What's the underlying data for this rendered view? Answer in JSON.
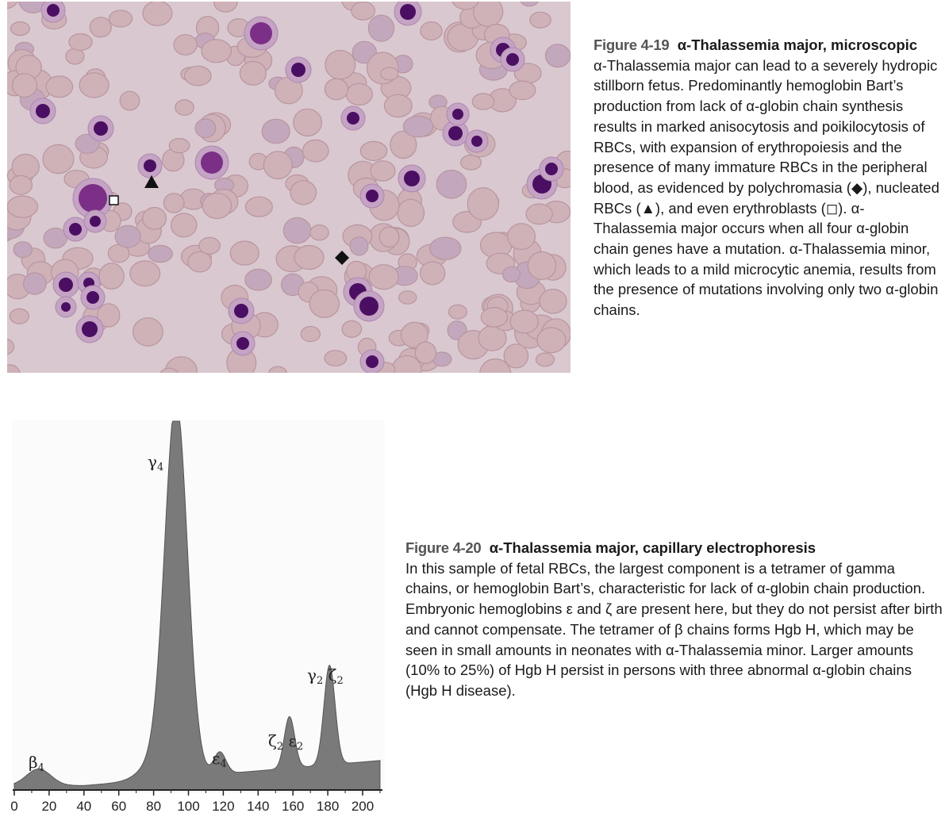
{
  "figure_19": {
    "number": "Figure 4-19",
    "title": "α-Thalassemia major, microscopic",
    "body": "α-Thalassemia major can lead to a severely hydropic stillborn fetus. Predominantly hemoglobin Bart’s production from lack of α-globin chain synthesis results in marked anisocytosis and poikilocytosis of RBCs, with expansion of erythropoiesis and the presence of many immature RBCs in the peripheral blood, as evidenced by polychromasia (◆), nucleated RBCs (▲), and even erythroblasts (◻). α-Thalassemia major occurs when all four α-globin chain genes have a mutation. α-Thalassemia minor, which leads to a mild microcytic anemia, results from the presence of mutations involving only two α-globin chains.",
    "markers": {
      "diamond": "◆",
      "triangle": "▲",
      "square": "◻"
    }
  },
  "figure_20": {
    "number": "Figure 4-20",
    "title": "α-Thalassemia major, capillary electrophoresis",
    "body": "In this sample of fetal RBCs, the largest component is a tetramer of gamma chains, or hemoglobin Bart’s, characteristic for lack of α-globin chain production. Embryonic hemoglobins ε and ζ are present here, but they do not persist after birth and cannot compensate. The tetramer of β chains forms Hgb H, which may be seen in small amounts in neonates with α-Thalassemia minor. Larger amounts (10% to 25%) of Hgb H persist in persons with three abnormal α-globin chains (Hgb H disease)."
  },
  "chart_data": {
    "type": "area",
    "title": "",
    "xlabel": "",
    "ylabel": "",
    "xlim": [
      0,
      210
    ],
    "ticks": [
      "0",
      "20",
      "40",
      "60",
      "80",
      "100",
      "120",
      "140",
      "160",
      "180",
      "200"
    ],
    "grid": false,
    "fill_color": "#7a7a7a",
    "peaks": [
      {
        "label": "β4",
        "x": 14,
        "height": 0.045
      },
      {
        "label": "γ4",
        "x": 93,
        "height": 1.0
      },
      {
        "label": "ε4",
        "x": 118,
        "height": 0.06
      },
      {
        "label": "ζ2 ε2",
        "x": 158,
        "height": 0.14
      },
      {
        "label": "γ2 ζ2",
        "x": 181,
        "height": 0.27
      }
    ],
    "peak_labels": {
      "beta4": {
        "base": "β",
        "sub": "4"
      },
      "gamma4": {
        "base": "γ",
        "sub": "4"
      },
      "epsilon4": {
        "base": "ε",
        "sub": "4"
      },
      "zeta2epsilon2": {
        "a": "ζ",
        "a_sub": "2",
        "b": "ε",
        "b_sub": "2"
      },
      "gamma2zeta2": {
        "a": "γ",
        "a_sub": "2",
        "b": "ζ",
        "b_sub": "2"
      }
    }
  }
}
